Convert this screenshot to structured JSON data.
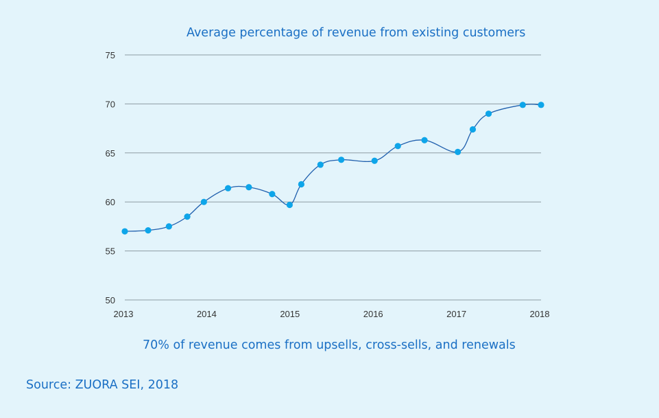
{
  "chart_data": {
    "type": "line",
    "title": "Average percentage of revenue from existing customers",
    "subtitle": "70% of revenue comes from upsells, cross-sells, and renewals",
    "xlabel": "",
    "ylabel": "",
    "xlim": [
      2013,
      2018
    ],
    "ylim": [
      50,
      75
    ],
    "yticks": [
      50,
      55,
      60,
      65,
      70,
      75
    ],
    "xticks": [
      {
        "value": 2013,
        "label": "2013"
      },
      {
        "value": 2014,
        "label": "2014"
      },
      {
        "value": 2015,
        "label": "2015"
      },
      {
        "value": 2016,
        "label": "2016"
      },
      {
        "value": 2017,
        "label": "2017"
      },
      {
        "value": 2018,
        "label": "2018"
      }
    ],
    "grid": "horizontal",
    "series": [
      {
        "name": "Average percentage of revenue from existing customers",
        "color": "#0ea5e9",
        "line_color": "#1f5fad",
        "x": [
          2013.0,
          2013.28,
          2013.53,
          2013.75,
          2013.95,
          2014.24,
          2014.49,
          2014.77,
          2014.98,
          2015.12,
          2015.35,
          2015.6,
          2016.0,
          2016.28,
          2016.6,
          2017.0,
          2017.18,
          2017.37,
          2017.78,
          2018.0
        ],
        "y": [
          57.0,
          57.1,
          57.5,
          58.5,
          60.0,
          61.4,
          61.5,
          60.8,
          59.7,
          61.8,
          63.8,
          64.3,
          64.2,
          65.7,
          66.3,
          65.1,
          67.4,
          69.0,
          69.9,
          69.9
        ]
      }
    ]
  },
  "footer": {
    "source": "Source: ZUORA SEI, 2018"
  }
}
